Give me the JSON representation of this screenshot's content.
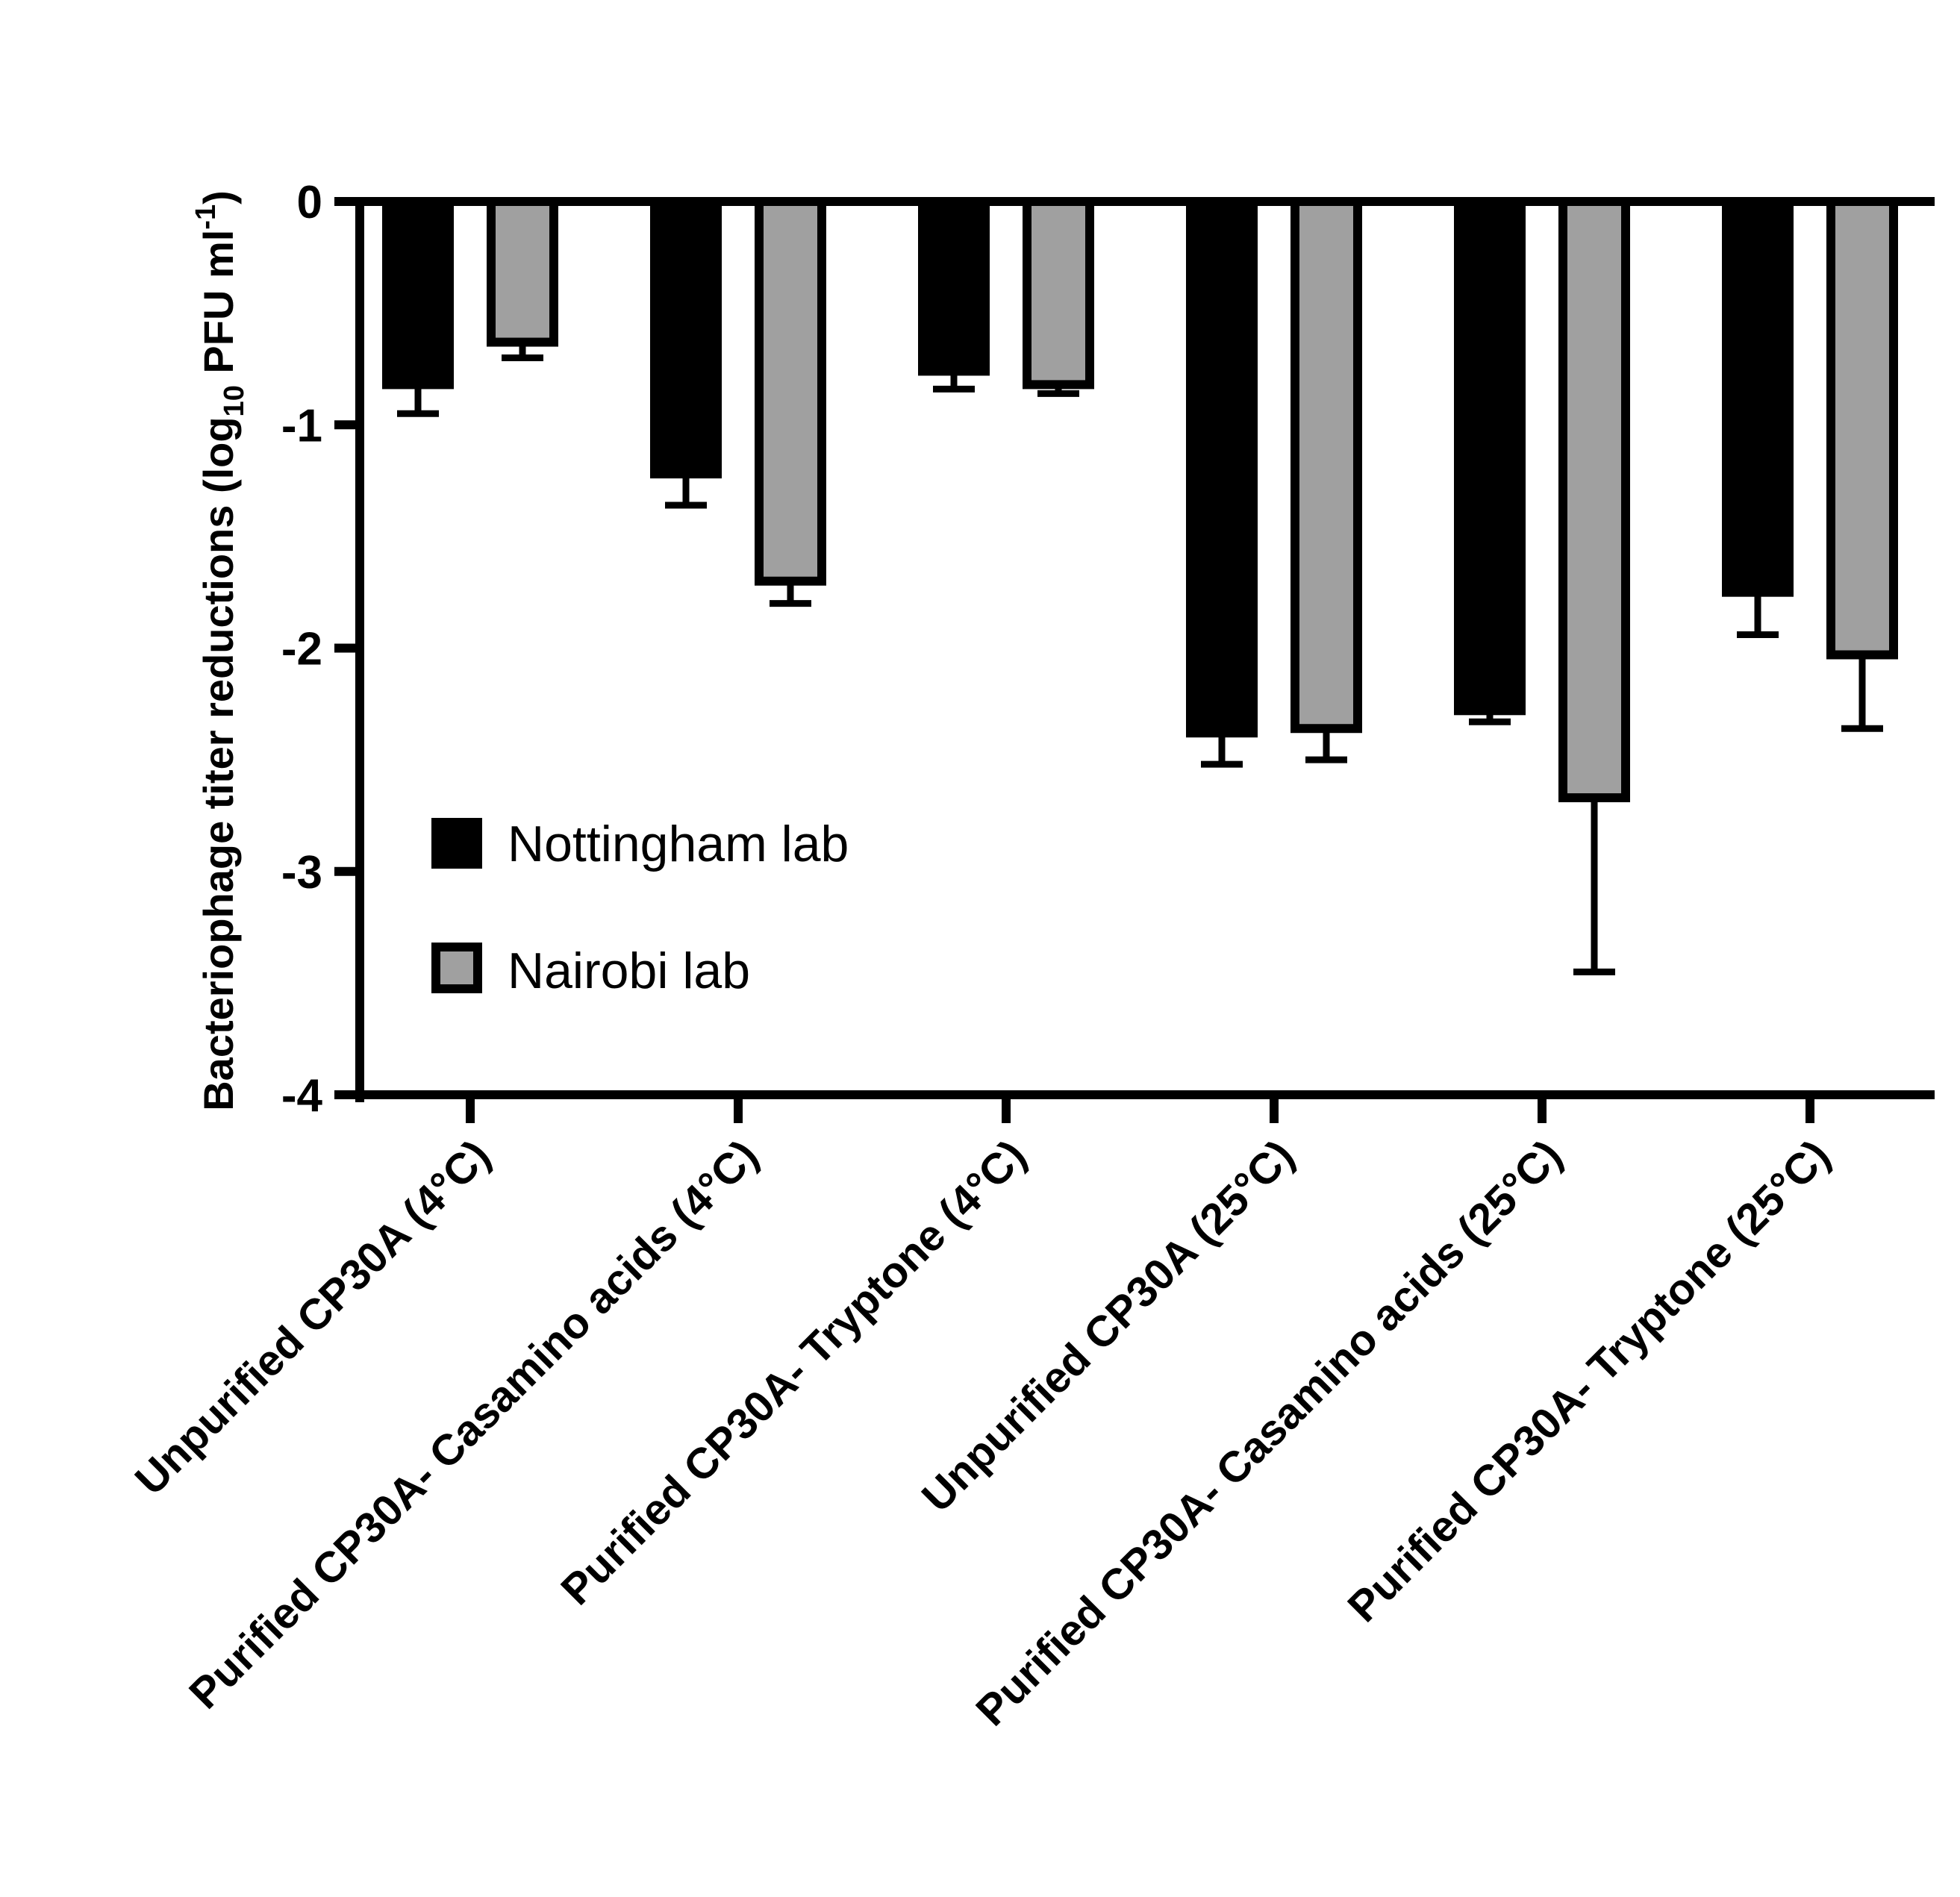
{
  "chart_data": {
    "type": "bar",
    "title": "",
    "xlabel": "",
    "ylabel": {
      "prefix": "Bacteriophage titer reductions (log",
      "subscript": "10",
      "middle": " PFU ml",
      "superscript": "-1",
      "suffix": ")"
    },
    "ylim": [
      -4,
      0
    ],
    "yticks": [
      "0",
      "-1",
      "-2",
      "-3",
      "-4"
    ],
    "categories": [
      "Unpurified CP30A (4°C)",
      "Purified CP30A- Casamino acids  (4°C)",
      "Purified CP30A- Tryptone (4°C)",
      "Unpurified CP30A (25°C)",
      "Purified CP30A- Casamino acids (25°C)",
      "Purified CP30A- Tryptone (25°C)"
    ],
    "series": [
      {
        "name": "Nottingham lab",
        "color": "#000000",
        "values": [
          -0.82,
          -1.22,
          -0.76,
          -2.38,
          -2.28,
          -1.75
        ],
        "errors": [
          0.13,
          0.14,
          0.08,
          0.14,
          0.05,
          0.19
        ]
      },
      {
        "name": "Nairobi lab",
        "color": "#a0a0a0",
        "values": [
          -0.63,
          -1.7,
          -0.82,
          -2.36,
          -2.67,
          -2.03
        ],
        "errors": [
          0.07,
          0.1,
          0.04,
          0.14,
          0.78,
          0.33
        ]
      }
    ],
    "legend_position": "bottom-left"
  }
}
